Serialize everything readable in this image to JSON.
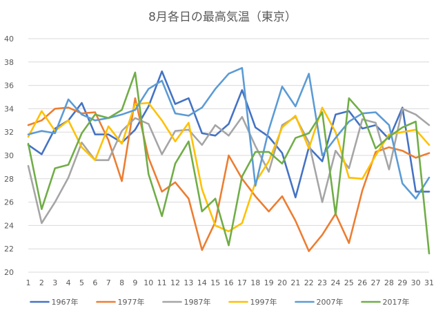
{
  "chart_data": {
    "type": "line",
    "title": "8月各日の最高気温（東京）",
    "xlabel": "",
    "ylabel": "",
    "ylim": [
      20,
      40
    ],
    "yticks": [
      20,
      22,
      24,
      26,
      28,
      30,
      32,
      34,
      36,
      38,
      40
    ],
    "grid": true,
    "legend_position": "bottom",
    "categories": [
      "1",
      "2",
      "3",
      "4",
      "5",
      "6",
      "7",
      "8",
      "9",
      "10",
      "11",
      "12",
      "13",
      "14",
      "15",
      "16",
      "17",
      "18",
      "19",
      "20",
      "21",
      "22",
      "23",
      "24",
      "25",
      "26",
      "27",
      "28",
      "29",
      "30",
      "31"
    ],
    "series": [
      {
        "name": "1967年",
        "color": "#4472C4",
        "values": [
          30.9,
          30.1,
          32.3,
          33.0,
          34.5,
          31.8,
          31.8,
          31.1,
          32.2,
          34.2,
          37.2,
          34.4,
          34.9,
          31.9,
          31.7,
          32.7,
          35.6,
          32.4,
          31.6,
          30.2,
          26.4,
          30.7,
          29.5,
          33.5,
          33.8,
          32.3,
          32.6,
          31.4,
          34.1,
          26.9,
          26.9
        ]
      },
      {
        "name": "1977年",
        "color": "#ED7D31",
        "values": [
          32.6,
          33.0,
          34.0,
          34.1,
          33.6,
          33.7,
          31.3,
          27.8,
          34.9,
          29.8,
          26.9,
          27.7,
          26.3,
          21.9,
          24.3,
          30.0,
          28.0,
          26.5,
          25.2,
          26.5,
          24.4,
          21.8,
          23.2,
          25.0,
          22.5,
          27.0,
          30.3,
          30.7,
          30.4,
          29.8,
          30.2
        ]
      },
      {
        "name": "1987年",
        "color": "#A5A5A5",
        "values": [
          29.1,
          24.2,
          26.0,
          28.1,
          31.1,
          29.6,
          29.6,
          32.1,
          33.2,
          32.7,
          30.1,
          32.1,
          32.2,
          30.9,
          32.6,
          31.7,
          33.3,
          30.8,
          28.6,
          32.6,
          33.3,
          31.1,
          26.0,
          30.4,
          28.9,
          33.1,
          32.8,
          28.8,
          34.0,
          33.5,
          32.6
        ]
      },
      {
        "name": "1997年",
        "color": "#FFC000",
        "values": [
          31.6,
          33.8,
          32.1,
          33.0,
          30.7,
          29.6,
          32.5,
          31.0,
          34.4,
          34.5,
          33.0,
          31.2,
          32.8,
          27.1,
          24.0,
          23.5,
          24.2,
          27.7,
          29.5,
          32.4,
          33.4,
          30.6,
          34.1,
          32.0,
          28.1,
          28.0,
          30.0,
          31.8,
          32.0,
          32.2,
          30.9
        ]
      },
      {
        "name": "2007年",
        "color": "#5B9BD5",
        "values": [
          31.8,
          32.1,
          31.9,
          34.8,
          33.5,
          33.0,
          33.2,
          33.5,
          33.9,
          35.7,
          36.4,
          33.6,
          33.4,
          34.1,
          35.7,
          37.0,
          37.5,
          27.4,
          32.2,
          35.9,
          34.2,
          37.0,
          30.0,
          31.5,
          32.9,
          33.6,
          33.7,
          32.6,
          27.6,
          26.3,
          28.1
        ]
      },
      {
        "name": "2017年",
        "color": "#70AD47",
        "values": [
          31.0,
          25.4,
          28.9,
          29.2,
          31.9,
          33.5,
          33.2,
          33.9,
          37.1,
          28.4,
          24.8,
          29.3,
          31.2,
          25.2,
          26.3,
          22.3,
          28.2,
          30.3,
          30.3,
          29.3,
          31.5,
          31.9,
          33.7,
          24.9,
          34.9,
          33.6,
          30.6,
          31.6,
          32.4,
          32.9,
          21.6
        ]
      }
    ]
  }
}
